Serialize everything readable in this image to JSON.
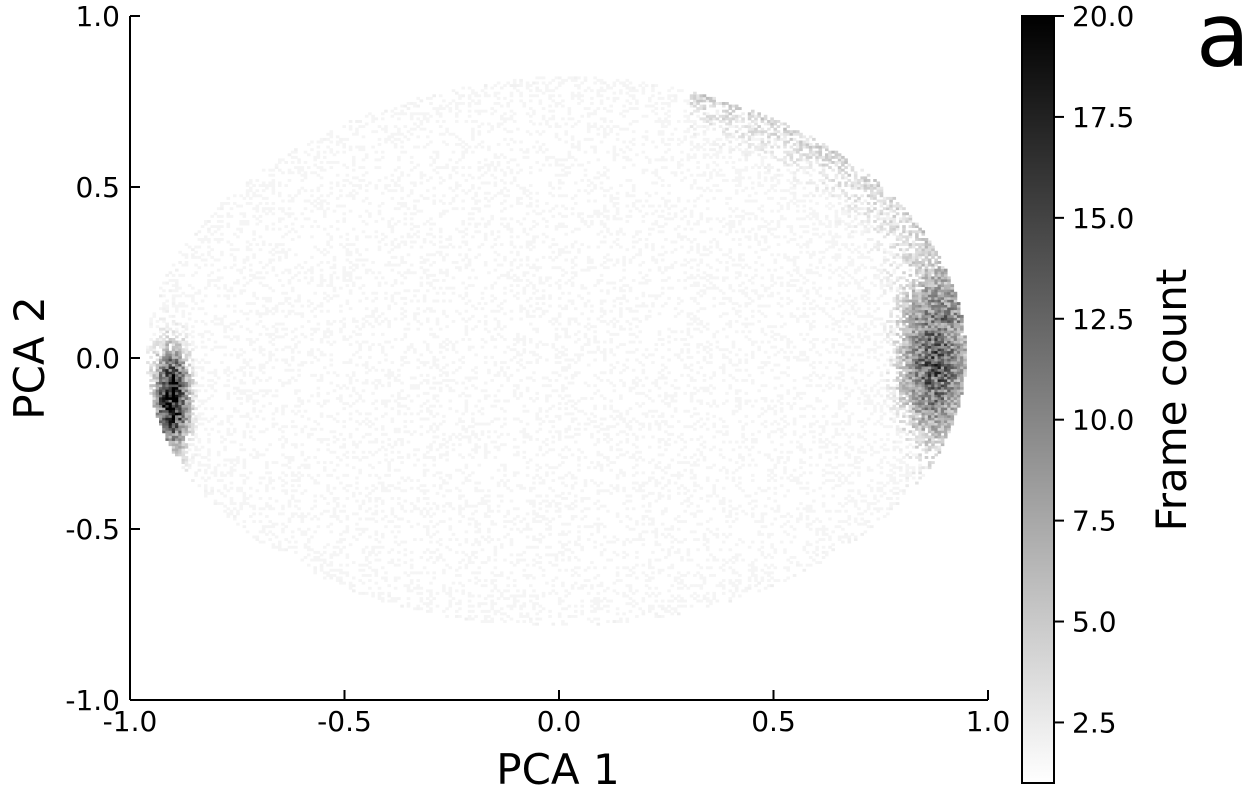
{
  "panel_label": "a",
  "chart_data": {
    "type": "heatmap",
    "title": "",
    "xlabel": "PCA 1",
    "ylabel": "PCA 2",
    "xlim": [
      -1.0,
      1.0
    ],
    "ylim": [
      -1.0,
      1.0
    ],
    "x_ticks": [
      -1.0,
      -0.5,
      0.0,
      0.5,
      1.0
    ],
    "x_tick_labels": [
      "-1.0",
      "-0.5",
      "0.0",
      "0.5",
      "1.0"
    ],
    "y_ticks": [
      -1.0,
      -0.5,
      0.0,
      0.5,
      1.0
    ],
    "y_tick_labels": [
      "-1.0",
      "-0.5",
      "0.0",
      "0.5",
      "1.0"
    ],
    "grid": false,
    "colormap": "Greys",
    "colorbar": {
      "label": "Frame count",
      "range": [
        1.0,
        20.0
      ],
      "ticks": [
        2.5,
        5.0,
        7.5,
        10.0,
        12.5,
        15.0,
        17.5,
        20.0
      ],
      "tick_labels": [
        "2.5",
        "5.0",
        "7.5",
        "10.0",
        "12.5",
        "15.0",
        "17.5",
        "20.0"
      ],
      "low_color": "#ffffff",
      "high_color": "#000000"
    },
    "density_regions": [
      {
        "region": "left-cluster",
        "x_range": [
          -0.94,
          -0.86
        ],
        "y_range": [
          -0.27,
          0.05
        ],
        "peak_count": 20.0
      },
      {
        "region": "right-cluster",
        "x_range": [
          0.62,
          0.94
        ],
        "y_range": [
          -0.3,
          0.35
        ],
        "peak_count": 16.0
      },
      {
        "region": "diffuse-envelope",
        "x_range": [
          -0.97,
          0.95
        ],
        "y_range": [
          -0.8,
          0.82
        ],
        "peak_count": 3.0
      }
    ]
  }
}
